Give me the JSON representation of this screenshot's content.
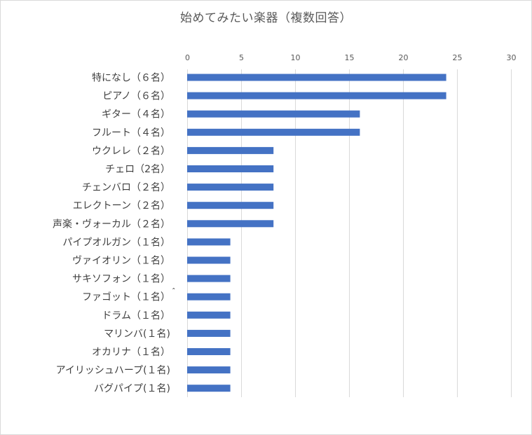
{
  "chart_data": {
    "type": "bar",
    "orientation": "horizontal",
    "title": "始めてみたい楽器（複数回答）",
    "xlabel": "",
    "ylabel": "",
    "xlim": [
      0,
      30
    ],
    "x_ticks": [
      0,
      5,
      10,
      15,
      20,
      25,
      30
    ],
    "x_axis_position": "top",
    "grid": true,
    "legend": "none",
    "bar_color": "#4472c4",
    "categories": [
      "特になし（６名）",
      "ピアノ（６名）",
      "ギター（４名）",
      "フルート（４名）",
      "ウクレレ（２名）",
      "チェロ（2名）",
      "チェンバロ（２名）",
      "エレクトーン（２名）",
      "声楽・ヴォーカル（２名）",
      "パイプオルガン（１名）",
      "ヴァイオリン（１名）",
      "サキソフォン（１名）",
      "ファゴット（１名）",
      "ドラム（１名）",
      "マリンバ(１名)",
      "オカリナ（１名）",
      "アイリッシュハープ(１名)",
      "バグパイプ(１名)"
    ],
    "values": [
      24,
      24,
      16,
      16,
      8,
      8,
      8,
      8,
      8,
      4,
      4,
      4,
      4,
      4,
      4,
      4,
      4,
      4
    ],
    "annotations": [
      {
        "text": "ˆ",
        "category_index": 12
      }
    ]
  }
}
